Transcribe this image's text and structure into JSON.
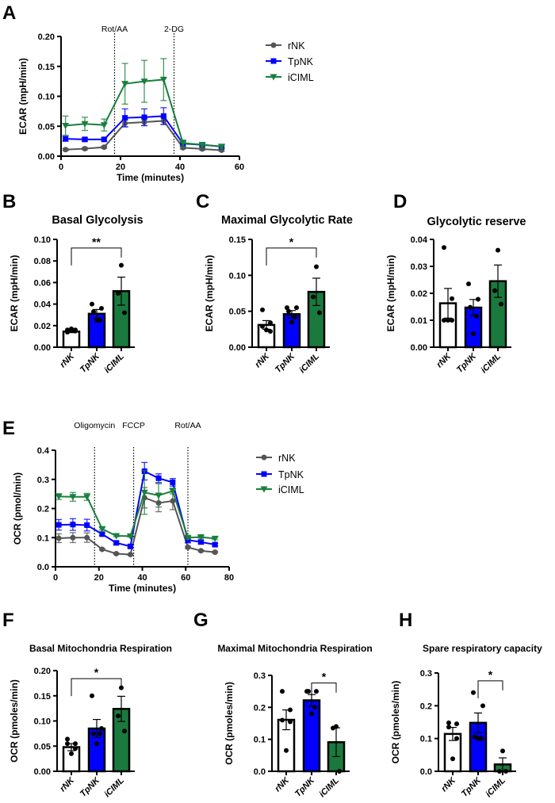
{
  "chart_data": [
    {
      "panel": "A",
      "type": "line",
      "title": "",
      "xlabel": "Time (minutes)",
      "ylabel": "ECAR (mpH/min)",
      "xlim": [
        0,
        60
      ],
      "ylim": [
        0,
        0.2
      ],
      "xtick_labels": [
        "0",
        "20",
        "40",
        "60"
      ],
      "ytick_labels": [
        "0.00",
        "0.05",
        "0.10",
        "0.15",
        "0.20"
      ],
      "annotations": [
        {
          "text": "Rot/AA",
          "x": 18
        },
        {
          "text": "2-DG",
          "x": 38
        }
      ],
      "legend": "right",
      "x": [
        1.5,
        8,
        14.5,
        21.5,
        28,
        34.5,
        41,
        47.5,
        54
      ],
      "series": [
        {
          "name": "rNK",
          "color": "#555555",
          "marker": "circle",
          "values": [
            0.011,
            0.0125,
            0.015,
            0.055,
            0.057,
            0.059,
            0.014,
            0.012,
            0.01
          ],
          "errors": [
            0.002,
            0.002,
            0.002,
            0.006,
            0.006,
            0.006,
            0.002,
            0.002,
            0.002
          ]
        },
        {
          "name": "TpNK",
          "color": "#0000ff",
          "marker": "square",
          "values": [
            0.029,
            0.028,
            0.028,
            0.064,
            0.065,
            0.067,
            0.021,
            0.019,
            0.016
          ],
          "errors": [
            0.004,
            0.003,
            0.003,
            0.015,
            0.014,
            0.014,
            0.004,
            0.002,
            0.002
          ]
        },
        {
          "name": "iCIML",
          "color": "#1a7f3c",
          "marker": "triangle-down",
          "values": [
            0.051,
            0.054,
            0.052,
            0.121,
            0.125,
            0.128,
            0.022,
            0.019,
            0.016
          ],
          "errors": [
            0.016,
            0.011,
            0.01,
            0.034,
            0.035,
            0.035,
            0.005,
            0.003,
            0.003
          ]
        }
      ]
    },
    {
      "panel": "B",
      "type": "bar",
      "title": "Basal Glycolysis",
      "ylabel": "ECAR (mpH/min)",
      "ylim": [
        0,
        0.1
      ],
      "ytick_labels": [
        "0.00",
        "0.02",
        "0.04",
        "0.06",
        "0.08",
        "0.10"
      ],
      "categories": [
        "rNK",
        "TpNK",
        "iCIML"
      ],
      "colors": [
        "#ffffff",
        "#0000ff",
        "#1a7a3e"
      ],
      "values": [
        0.0145,
        0.031,
        0.052
      ],
      "errors": [
        0.001,
        0.004,
        0.013
      ],
      "points": [
        [
          0.016,
          0.016,
          0.014,
          0.015,
          0.017
        ],
        [
          0.04,
          0.036,
          0.033,
          0.025,
          0.025
        ],
        [
          0.076,
          0.05,
          0.032
        ]
      ],
      "significance": [
        {
          "from": 0,
          "to": 2,
          "label": "**"
        }
      ]
    },
    {
      "panel": "C",
      "type": "bar",
      "title": "Maximal Glycolytic Rate",
      "ylabel": "ECAR (mpH/min)",
      "ylim": [
        0,
        0.15
      ],
      "ytick_labels": [
        "0.00",
        "0.05",
        "0.10",
        "0.15"
      ],
      "categories": [
        "rNK",
        "TpNK",
        "iCIML"
      ],
      "colors": [
        "#ffffff",
        "#0000ff",
        "#1a7a3e"
      ],
      "values": [
        0.031,
        0.046,
        0.077
      ],
      "errors": [
        0.006,
        0.005,
        0.019
      ],
      "points": [
        [
          0.052,
          0.034,
          0.029,
          0.022,
          0.024
        ],
        [
          0.055,
          0.055,
          0.05,
          0.042,
          0.035
        ],
        [
          0.112,
          0.07,
          0.048
        ]
      ],
      "significance": [
        {
          "from": 0,
          "to": 2,
          "label": "*"
        }
      ]
    },
    {
      "panel": "D",
      "type": "bar",
      "title": "Glycolytic reserve",
      "ylabel": "ECAR (mpH/min)",
      "ylim": [
        0,
        0.04
      ],
      "ytick_labels": [
        "0.00",
        "0.01",
        "0.02",
        "0.03",
        "0.04"
      ],
      "categories": [
        "rNK",
        "TpNK",
        "iCIML"
      ],
      "colors": [
        "#ffffff",
        "#0000ff",
        "#1a7a3e"
      ],
      "values": [
        0.0163,
        0.0147,
        0.0245
      ],
      "errors": [
        0.0055,
        0.003,
        0.006
      ],
      "points": [
        [
          0.037,
          0.018,
          0.01,
          0.01,
          0.01
        ],
        [
          0.0235,
          0.0178,
          0.0148,
          0.0115,
          0.005
        ],
        [
          0.036,
          0.021,
          0.016
        ]
      ],
      "significance": []
    },
    {
      "panel": "E",
      "type": "line",
      "title": "",
      "xlabel": "Time (minutes)",
      "ylabel": "OCR (pmol/min)",
      "xlim": [
        0,
        80
      ],
      "ylim": [
        0,
        0.4
      ],
      "xtick_labels": [
        "0",
        "20",
        "40",
        "60",
        "80"
      ],
      "ytick_labels": [
        "0.0",
        "0.1",
        "0.2",
        "0.3",
        "0.4"
      ],
      "annotations": [
        {
          "text": "Oligomycin",
          "x": 18
        },
        {
          "text": "FCCP",
          "x": 36
        },
        {
          "text": "Rot/AA",
          "x": 61
        }
      ],
      "legend": "right",
      "x": [
        1.5,
        8,
        14.5,
        21.5,
        28,
        34.5,
        41,
        47.5,
        54,
        61,
        67,
        73.5
      ],
      "series": [
        {
          "name": "rNK",
          "color": "#555555",
          "marker": "circle",
          "values": [
            0.098,
            0.1,
            0.1,
            0.06,
            0.045,
            0.042,
            0.237,
            0.219,
            0.226,
            0.067,
            0.055,
            0.05
          ],
          "errors": [
            0.015,
            0.017,
            0.016,
            0.003,
            0.002,
            0.002,
            0.035,
            0.03,
            0.03,
            0.004,
            0.003,
            0.003
          ]
        },
        {
          "name": "TpNK",
          "color": "#0000ff",
          "marker": "square",
          "values": [
            0.144,
            0.145,
            0.143,
            0.112,
            0.082,
            0.07,
            0.328,
            0.304,
            0.29,
            0.092,
            0.085,
            0.076
          ],
          "errors": [
            0.018,
            0.02,
            0.02,
            0.005,
            0.005,
            0.005,
            0.03,
            0.015,
            0.013,
            0.01,
            0.006,
            0.005
          ]
        },
        {
          "name": "iCIML",
          "color": "#1a7f3c",
          "marker": "triangle-down",
          "values": [
            0.241,
            0.24,
            0.24,
            0.13,
            0.106,
            0.105,
            0.255,
            0.245,
            0.26,
            0.1,
            0.102,
            0.097
          ],
          "errors": [
            0.01,
            0.015,
            0.012,
            0.004,
            0.003,
            0.003,
            0.075,
            0.04,
            0.01,
            0.005,
            0.004,
            0.004
          ]
        }
      ]
    },
    {
      "panel": "F",
      "type": "bar",
      "title": "Basal Mitochondria Respiration",
      "ylabel": "OCR (pmoles/min)",
      "ylim": [
        0,
        0.2
      ],
      "ytick_labels": [
        "0.00",
        "0.05",
        "0.10",
        "0.15",
        "0.20"
      ],
      "categories": [
        "rNK",
        "TpNK",
        "iCIML"
      ],
      "colors": [
        "#ffffff",
        "#0000ff",
        "#1a7a3e"
      ],
      "values": [
        0.048,
        0.085,
        0.124
      ],
      "errors": [
        0.007,
        0.018,
        0.025
      ],
      "points": [
        [
          0.064,
          0.055,
          0.055,
          0.045,
          0.035
        ],
        [
          0.15,
          0.085,
          0.075,
          0.075,
          0.055
        ],
        [
          0.166,
          0.11,
          0.08
        ]
      ],
      "significance": [
        {
          "from": 0,
          "to": 2,
          "label": "*"
        }
      ]
    },
    {
      "panel": "G",
      "type": "bar",
      "title": "Maximal  Mitochondria Respiration",
      "ylabel": "OCR (pmoles/min)",
      "ylim": [
        0,
        0.3
      ],
      "ytick_labels": [
        "0.0",
        "0.1",
        "0.2",
        "0.3"
      ],
      "categories": [
        "rNK",
        "TpNK",
        "iCIML"
      ],
      "colors": [
        "#ffffff",
        "#0000ff",
        "#1a7a3e"
      ],
      "values": [
        0.161,
        0.222,
        0.091
      ],
      "errors": [
        0.031,
        0.018,
        0.045
      ],
      "points": [
        [
          0.25,
          0.192,
          0.16,
          0.155,
          0.065
        ],
        [
          0.25,
          0.25,
          0.25,
          0.2,
          0.18
        ],
        [
          0.14,
          0.135,
          0.0
        ]
      ],
      "significance": [
        {
          "from": 1,
          "to": 2,
          "label": "*"
        }
      ]
    },
    {
      "panel": "H",
      "type": "bar",
      "title": "Spare respiratory capacity",
      "ylabel": "OCR (pmoles/min)",
      "ylim": [
        0,
        0.3
      ],
      "ytick_labels": [
        "0.0",
        "0.1",
        "0.2",
        "0.3"
      ],
      "categories": [
        "rNK",
        "TpNK",
        "iCIML"
      ],
      "colors": [
        "#ffffff",
        "#0000ff",
        "#1a7a3e"
      ],
      "values": [
        0.114,
        0.148,
        0.021
      ],
      "errors": [
        0.02,
        0.03,
        0.02
      ],
      "points": [
        [
          0.148,
          0.145,
          0.135,
          0.1,
          0.038
        ],
        [
          0.24,
          0.2,
          0.105,
          0.1,
          0.1
        ],
        [
          0.062,
          0.0,
          0.0
        ]
      ],
      "significance": [
        {
          "from": 1,
          "to": 2,
          "label": "*"
        }
      ]
    }
  ]
}
